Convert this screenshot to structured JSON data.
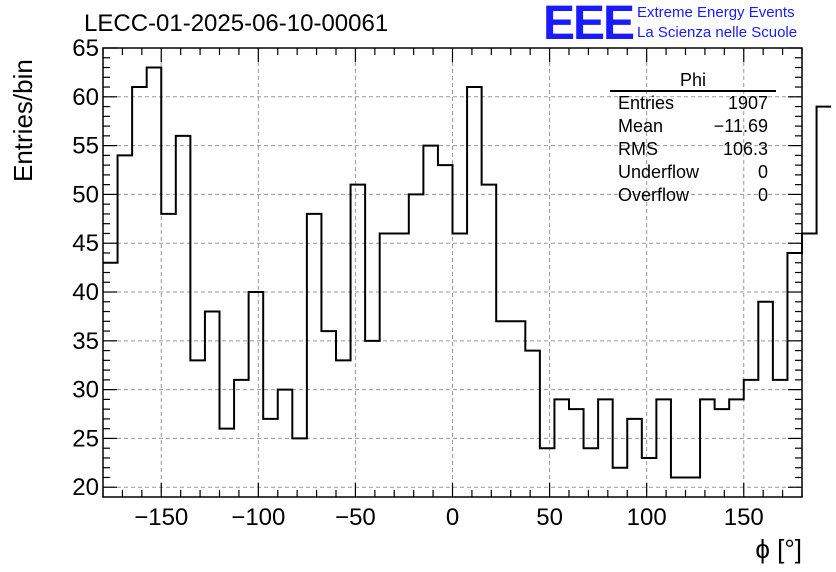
{
  "title": "LECC-01-2025-06-10-00061",
  "logo": {
    "mark": "EEE",
    "line1": "Extreme Energy Events",
    "line2": "La Scienza nelle Scuole",
    "color": "#1a1aff"
  },
  "stats": {
    "name": "Phi",
    "rows": [
      {
        "label": "Entries",
        "value": "1907"
      },
      {
        "label": "Mean",
        "value": "−11.69"
      },
      {
        "label": "RMS",
        "value": "106.3"
      },
      {
        "label": "Underflow",
        "value": "0"
      },
      {
        "label": "Overflow",
        "value": "0"
      }
    ]
  },
  "chart_data": {
    "type": "bar",
    "style": "step-histogram",
    "title": "LECC-01-2025-06-10-00061",
    "xlabel": "ϕ [°]",
    "ylabel": "Entries/bin",
    "xlim": [
      -180,
      180
    ],
    "ylim": [
      19,
      65
    ],
    "bin_width": 7.5,
    "x_ticks": [
      -150,
      -100,
      -50,
      0,
      50,
      100,
      150
    ],
    "x_tick_labels": [
      "−150",
      "−100",
      "−50",
      "0",
      "50",
      "100",
      "150"
    ],
    "y_ticks": [
      20,
      25,
      30,
      35,
      40,
      45,
      50,
      55,
      60,
      65
    ],
    "y_tick_labels": [
      "20",
      "25",
      "30",
      "35",
      "40",
      "45",
      "50",
      "55",
      "60",
      "65"
    ],
    "grid": true,
    "values": [
      43,
      54,
      61,
      63,
      48,
      56,
      33,
      38,
      26,
      31,
      40,
      27,
      30,
      25,
      48,
      36,
      33,
      51,
      35,
      46,
      46,
      50,
      55,
      53,
      46,
      61,
      51,
      37,
      37,
      34,
      24,
      29,
      28,
      24,
      29,
      22,
      27,
      23,
      29,
      21,
      21,
      29,
      28,
      29,
      31,
      39,
      31,
      44,
      46,
      59
    ]
  }
}
